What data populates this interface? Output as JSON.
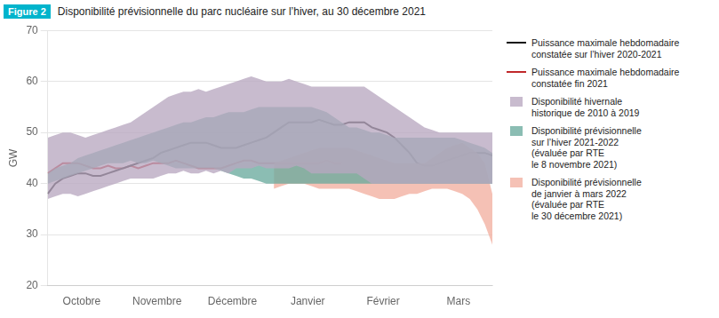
{
  "chart_data": {
    "type": "line",
    "title": "Disponibilité prévisionnelle du parc nucléaire sur l’hiver, au 30 décembre 2021",
    "figure_label": "Figure 2",
    "ylabel": "GW",
    "ylim": [
      20,
      70
    ],
    "yticks": [
      20,
      30,
      40,
      50,
      60,
      70
    ],
    "grid": true,
    "x": [
      0,
      1,
      2,
      3,
      4,
      5,
      6,
      7,
      8,
      9,
      10,
      11,
      12,
      13,
      14,
      15,
      16,
      17,
      18,
      19,
      20,
      21,
      22,
      23,
      24,
      25,
      26,
      27,
      28,
      29,
      30,
      31,
      32,
      33,
      34,
      35,
      36,
      37,
      38,
      39,
      40,
      41,
      42,
      43,
      44,
      45,
      46,
      47,
      48,
      49,
      50,
      51,
      52,
      53,
      54,
      55,
      56,
      57,
      58,
      59
    ],
    "xlim": [
      0,
      59
    ],
    "xticks": [
      {
        "value": 4.5,
        "label": "Octobre"
      },
      {
        "value": 14.5,
        "label": "Novembre"
      },
      {
        "value": 24.5,
        "label": "Décembre"
      },
      {
        "value": 34.5,
        "label": "Janvier"
      },
      {
        "value": 44.5,
        "label": "Février"
      },
      {
        "value": 54.5,
        "label": "Mars"
      }
    ],
    "series": [
      {
        "name": "Puissance maximale hebdomadaire\nconstatée sur l’hiver 2020-2021",
        "type": "line",
        "color": "#111111",
        "values": [
          38,
          40,
          41,
          41.5,
          42,
          42,
          41.5,
          41.5,
          42,
          42.5,
          43,
          43.5,
          44,
          44.5,
          45,
          46,
          46.5,
          47,
          47.5,
          48,
          48,
          48,
          47.5,
          47,
          47,
          47,
          47.5,
          48,
          48.5,
          49,
          50,
          51,
          52,
          52,
          52,
          52,
          52.5,
          52,
          51.5,
          51.5,
          52,
          52,
          52,
          51,
          50.5,
          50,
          49,
          47.5,
          46,
          44,
          43.5,
          43.5,
          44,
          44.5,
          45,
          45.5,
          46,
          46,
          46,
          45.5
        ]
      },
      {
        "name": "Puissance maximale hebdomadaire\nconstatée fin 2021",
        "type": "line",
        "color": "#c0282a",
        "values": [
          42,
          43,
          44,
          44,
          44,
          43.5,
          43,
          43,
          43.5,
          43,
          43,
          43.5,
          43,
          43.5,
          44,
          44,
          44,
          44.5,
          44,
          43.5,
          43,
          43,
          43,
          43,
          43.5,
          44,
          44.5,
          44.5,
          44,
          44,
          44,
          44,
          44,
          44,
          44,
          44,
          44,
          44.5,
          44,
          44,
          null,
          null,
          null,
          null,
          null,
          null,
          null,
          null,
          null,
          null,
          null,
          null,
          null,
          null,
          null,
          null,
          null,
          null,
          null,
          null
        ]
      },
      {
        "name": "Disponibilité hivernale\nhistorique de 2010 à 2019",
        "type": "area",
        "color": "#b8a8c0",
        "upper": [
          49,
          49.5,
          50,
          50,
          49.5,
          49,
          49.5,
          50,
          50.5,
          51,
          51.5,
          52,
          53,
          54,
          55,
          56,
          57,
          57.5,
          58,
          58,
          58.5,
          58,
          58.5,
          59,
          59.5,
          60,
          60.5,
          61,
          60.5,
          60,
          60,
          60,
          60.5,
          60,
          59.5,
          59,
          59,
          59,
          59,
          59,
          59,
          59,
          59,
          58,
          57,
          56,
          55,
          54,
          53,
          52,
          51,
          50.5,
          50,
          50,
          50,
          50,
          50,
          50,
          50,
          50
        ],
        "lower": [
          37,
          37.5,
          38,
          38,
          37.5,
          38,
          38.5,
          39,
          39.5,
          40,
          40.5,
          41,
          41,
          41,
          41,
          41.5,
          42,
          42,
          42.5,
          42,
          42,
          42.5,
          42,
          42.5,
          42,
          43,
          43,
          43,
          43.5,
          43,
          43,
          43,
          43,
          43.5,
          43,
          42,
          42,
          42,
          42,
          42,
          42,
          42,
          41,
          40,
          40,
          40,
          40,
          40,
          40,
          40,
          40,
          40,
          40,
          40,
          40,
          40,
          40,
          40,
          40,
          40
        ]
      },
      {
        "name": "Disponibilité prévisionnelle\nsur l’hiver 2021-2022\n(évaluée par RTE\nle 8 novembre 2021)",
        "type": "area",
        "color": "#6aab9e",
        "upper": [
          42,
          43,
          43.5,
          44,
          45,
          45.5,
          46,
          46.5,
          47,
          47.5,
          48,
          48.5,
          49,
          49.5,
          50,
          50.5,
          51,
          51.5,
          52,
          52,
          52.5,
          53,
          53,
          53.5,
          54,
          54,
          54,
          54.5,
          55,
          55,
          55,
          55,
          55,
          55,
          55,
          55,
          54.5,
          54,
          53,
          52,
          51,
          51,
          50.5,
          50,
          50,
          49.5,
          49,
          49,
          49,
          49,
          49,
          49,
          49,
          49,
          49,
          48.5,
          48,
          47.5,
          47,
          46
        ],
        "lower": [
          40,
          40.5,
          41,
          41.5,
          42,
          42.5,
          43,
          43.5,
          44,
          44,
          44,
          44.5,
          44,
          44,
          44.5,
          44,
          43.5,
          43,
          43,
          43,
          43,
          43,
          43,
          42.5,
          42,
          41.5,
          41,
          41,
          40.5,
          40,
          40,
          40,
          40,
          40,
          40,
          40,
          40,
          40,
          40,
          40,
          40,
          40,
          40,
          40,
          40,
          40,
          40,
          40,
          40,
          40,
          40,
          40,
          40,
          40,
          40,
          40,
          40,
          40,
          40,
          40
        ]
      },
      {
        "name": "Disponibilité prévisionnelle\nde janvier à mars 2022\n(évaluée par RTE\nle 30 décembre 2021)",
        "type": "area",
        "color": "#f2b0a0",
        "upper": [
          null,
          null,
          null,
          null,
          null,
          null,
          null,
          null,
          null,
          null,
          null,
          null,
          null,
          null,
          null,
          null,
          null,
          null,
          null,
          null,
          null,
          null,
          null,
          null,
          null,
          null,
          null,
          null,
          null,
          null,
          44,
          44.5,
          45,
          45.5,
          46,
          46.5,
          47,
          47,
          47,
          47,
          47,
          46.5,
          46,
          45.5,
          45,
          44.5,
          44,
          44,
          44,
          44,
          44,
          45,
          46,
          47,
          47.5,
          48,
          47,
          46,
          44,
          38
        ],
        "lower": [
          null,
          null,
          null,
          null,
          null,
          null,
          null,
          null,
          null,
          null,
          null,
          null,
          null,
          null,
          null,
          null,
          null,
          null,
          null,
          null,
          null,
          null,
          null,
          null,
          null,
          null,
          null,
          null,
          null,
          null,
          39,
          39.5,
          40,
          40,
          40,
          39.5,
          39,
          39,
          39,
          39,
          39,
          38.5,
          38,
          37.5,
          37,
          37,
          37,
          37.5,
          38,
          38,
          38.5,
          39,
          39,
          39,
          38.5,
          38,
          37,
          35,
          32,
          28
        ]
      }
    ]
  }
}
